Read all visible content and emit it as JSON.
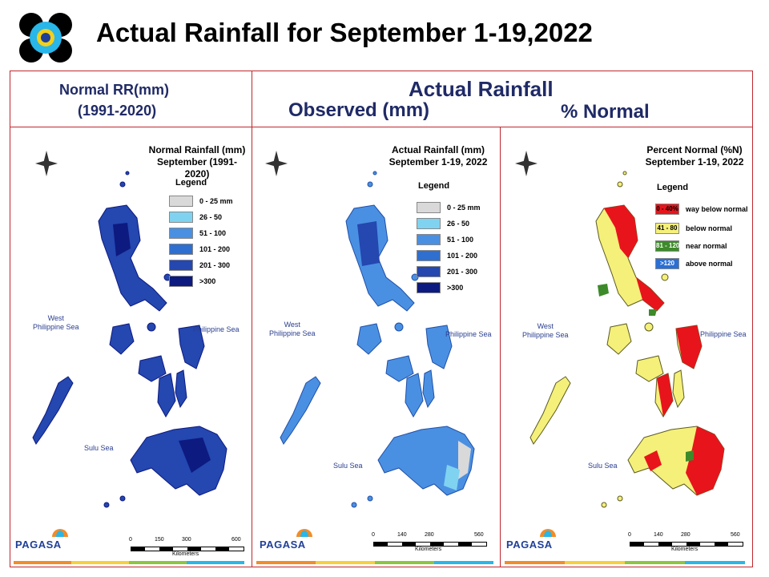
{
  "page": {
    "title": "Actual Rainfall for September 1-19,2022",
    "header_left_line1": "Normal RR(mm)",
    "header_left_line2": "(1991-2020)",
    "header_actual": "Actual Rainfall",
    "header_observed": "Observed (mm)",
    "header_percent": "% Normal"
  },
  "maps": [
    {
      "title_line1": "Normal Rainfall (mm)",
      "title_line2": "September (1991-2020)",
      "legend_title": "Legend",
      "legend": [
        {
          "label": "0 - 25 mm",
          "color": "#d9d9d9"
        },
        {
          "label": "26 - 50",
          "color": "#7fd3f0"
        },
        {
          "label": "51 - 100",
          "color": "#4a90e2"
        },
        {
          "label": "101 - 200",
          "color": "#2f6fd0"
        },
        {
          "label": "201 - 300",
          "color": "#2447b0"
        },
        {
          "label": ">300",
          "color": "#0d1a80"
        }
      ],
      "sea_west_1": "West",
      "sea_west_2": "Philippine Sea",
      "sea_east": "Philippine Sea",
      "sea_south": "Sulu Sea",
      "scale_ticks": [
        "0",
        "150",
        "300",
        "600"
      ],
      "scale_unit": "Kilometers",
      "brand": "PAGASA"
    },
    {
      "title_line1": "Actual Rainfall (mm)",
      "title_line2": "September 1-19, 2022",
      "legend_title": "Legend",
      "legend": [
        {
          "label": "0 - 25 mm",
          "color": "#d9d9d9"
        },
        {
          "label": "26 - 50",
          "color": "#7fd3f0"
        },
        {
          "label": "51 - 100",
          "color": "#4a90e2"
        },
        {
          "label": "101 - 200",
          "color": "#2f6fd0"
        },
        {
          "label": "201 - 300",
          "color": "#2447b0"
        },
        {
          "label": ">300",
          "color": "#0d1a80"
        }
      ],
      "sea_west_1": "West",
      "sea_west_2": "Philippine Sea",
      "sea_east": "Philippine Sea",
      "sea_south": "Sulu Sea",
      "scale_ticks": [
        "0",
        "140",
        "280",
        "560"
      ],
      "scale_unit": "Kilometers",
      "brand": "PAGASA"
    },
    {
      "title_line1": "Percent Normal (%N)",
      "title_line2": "September 1-19, 2022",
      "legend_title": "Legend",
      "legend": [
        {
          "swatch": "0 - 40%",
          "label": "way below normal",
          "color": "#e8141b"
        },
        {
          "swatch": "41 - 80",
          "label": "below normal",
          "color": "#f5f07a"
        },
        {
          "swatch": "81 - 120",
          "label": "near normal",
          "color": "#3d8a2a"
        },
        {
          "swatch": ">120",
          "label": "above normal",
          "color": "#2a6fd6"
        }
      ],
      "sea_west_1": "West",
      "sea_west_2": "Philippine Sea",
      "sea_east": "Philippine Sea",
      "sea_south": "Sulu Sea",
      "scale_ticks": [
        "0",
        "140",
        "280",
        "560"
      ],
      "scale_unit": "Kilometers",
      "brand": "PAGASA"
    }
  ],
  "colors": {
    "frame": "#c0272d",
    "header_text": "#1f2a66",
    "normal_fill": "#2447b0",
    "actual_fill": "#4a90e2",
    "percent_fill": "#f5f07a",
    "percent_red": "#e8141b"
  }
}
